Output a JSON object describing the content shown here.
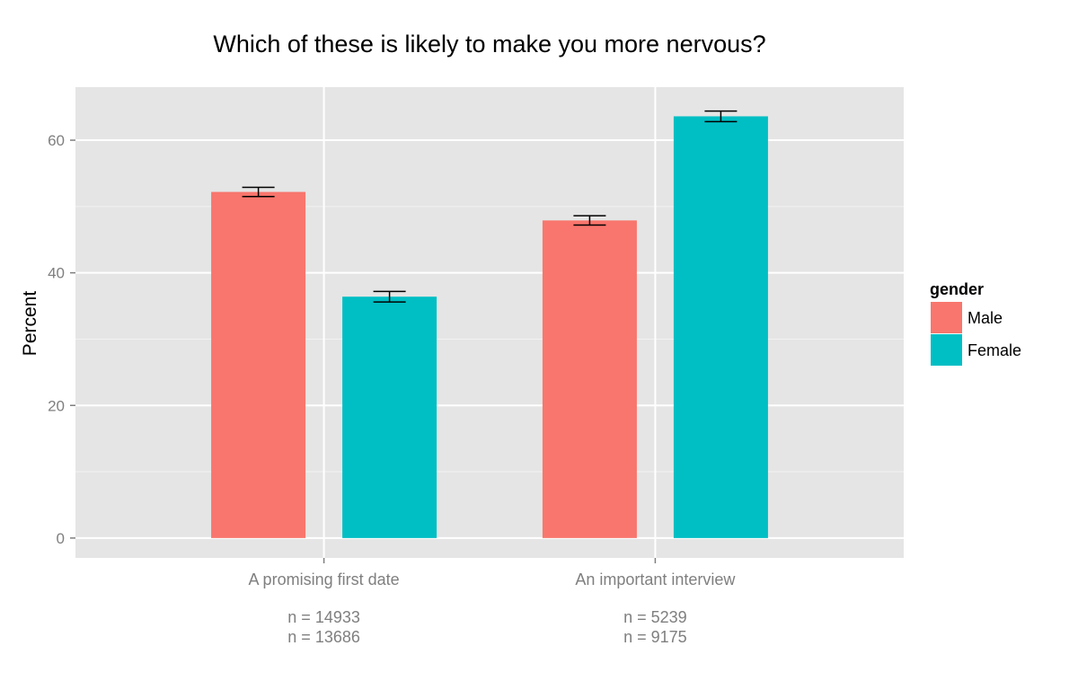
{
  "chart_data": {
    "type": "bar",
    "title": "Which of these is likely to make you more nervous?",
    "xlabel": "",
    "ylabel": "Percent",
    "categories": [
      "A promising first date",
      "An important interview"
    ],
    "category_notes": [
      [
        "n = 14933",
        "n = 13686"
      ],
      [
        "n = 5239",
        "n = 9175"
      ]
    ],
    "series": [
      {
        "name": "Male",
        "color": "#F8766D",
        "values": [
          52.2,
          47.9
        ],
        "error_low": [
          51.5,
          47.2
        ],
        "error_high": [
          52.9,
          48.6
        ]
      },
      {
        "name": "Female",
        "color": "#00BFC4",
        "values": [
          36.4,
          63.6
        ],
        "error_low": [
          35.6,
          62.8
        ],
        "error_high": [
          37.2,
          64.4
        ]
      }
    ],
    "ylim": [
      -3,
      68
    ],
    "yticks": [
      0,
      20,
      40,
      60
    ],
    "grid": true,
    "legend": {
      "title": "gender",
      "position": "right"
    },
    "colors": {
      "panel": "#E5E5E5",
      "grid_major": "#FFFFFF",
      "grid_minor": "#F2F2F2",
      "tick_text": "#7F7F7F"
    }
  }
}
